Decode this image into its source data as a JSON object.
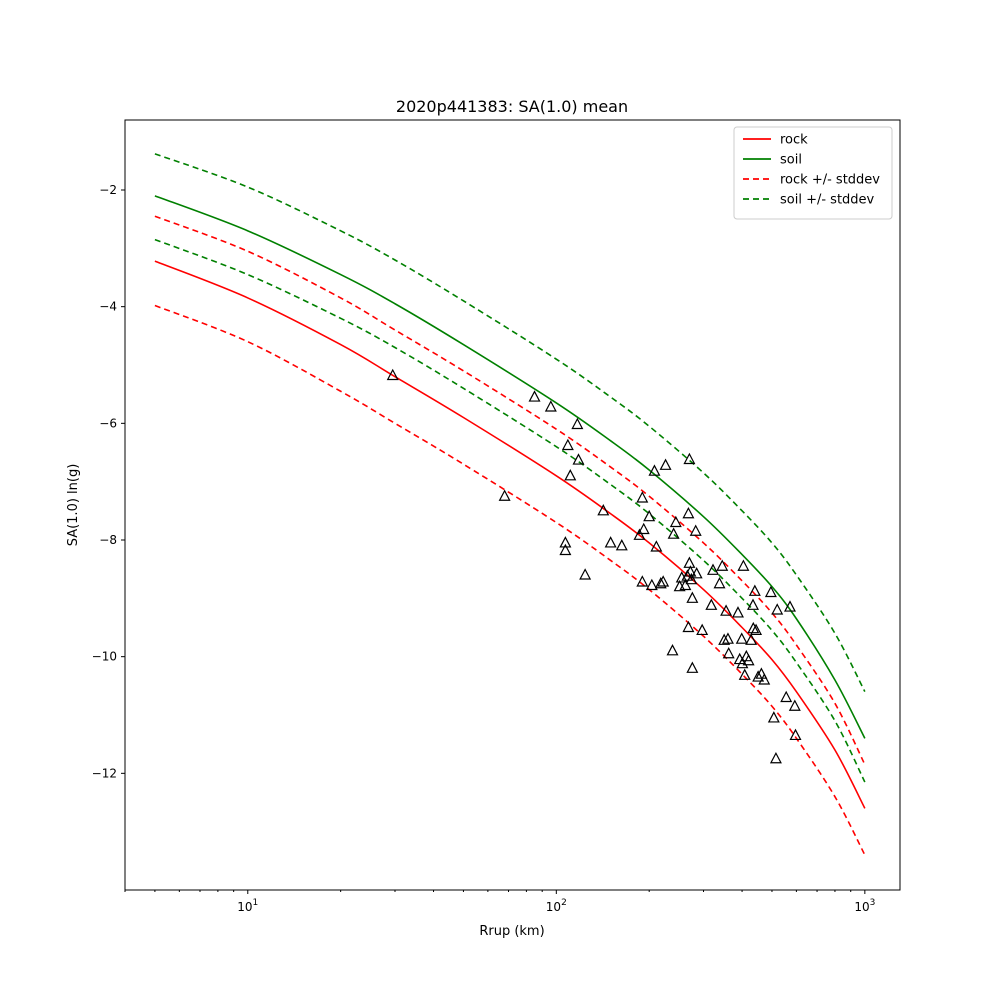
{
  "chart_data": {
    "type": "line",
    "title": "2020p441383: SA(1.0) mean",
    "xlabel": "Rrup (km)",
    "ylabel": "SA(1.0) ln(g)",
    "xscale": "log",
    "xlim": [
      4,
      1300
    ],
    "ylim": [
      -14.0,
      -0.8
    ],
    "x_ticks": [
      {
        "value": 10,
        "base": "10",
        "exp": "1"
      },
      {
        "value": 100,
        "base": "10",
        "exp": "2"
      },
      {
        "value": 1000,
        "base": "10",
        "exp": "3"
      }
    ],
    "y_ticks": [
      -12,
      -10,
      -8,
      -6,
      -4,
      -2
    ],
    "y_tick_labels": [
      "−12",
      "−10",
      "−8",
      "−6",
      "−4",
      "−2"
    ],
    "grid": false,
    "legend_position": "top-right",
    "x": [
      5,
      10,
      20,
      30,
      50,
      100,
      150,
      200,
      300,
      400,
      500,
      600,
      800,
      1000
    ],
    "series": [
      {
        "name": "rock",
        "color": "#ff0000",
        "style": "solid",
        "values": [
          -3.22,
          -3.85,
          -4.65,
          -5.2,
          -5.9,
          -6.9,
          -7.55,
          -8.05,
          -8.85,
          -9.5,
          -10.05,
          -10.6,
          -11.6,
          -12.6
        ]
      },
      {
        "name": "soil",
        "color": "#008000",
        "style": "solid",
        "values": [
          -2.1,
          -2.7,
          -3.45,
          -3.95,
          -4.65,
          -5.65,
          -6.3,
          -6.8,
          -7.6,
          -8.25,
          -8.8,
          -9.35,
          -10.4,
          -11.4
        ]
      },
      {
        "name": "rock +/- stddev",
        "color": "#ff0000",
        "style": "dashed",
        "values": [
          -2.45,
          -3.05,
          -3.85,
          -4.4,
          -5.1,
          -6.1,
          -6.75,
          -7.25,
          -8.05,
          -8.7,
          -9.25,
          -9.8,
          -10.8,
          -11.85
        ]
      },
      {
        "name": "rock +/- stddev",
        "color": "#ff0000",
        "style": "dashed",
        "show_in_legend": false,
        "values": [
          -3.98,
          -4.6,
          -5.45,
          -6.0,
          -6.7,
          -7.7,
          -8.35,
          -8.85,
          -9.65,
          -10.3,
          -10.85,
          -11.4,
          -12.4,
          -13.4
        ]
      },
      {
        "name": "soil +/- stddev",
        "color": "#008000",
        "style": "dashed",
        "values": [
          -1.38,
          -1.95,
          -2.7,
          -3.2,
          -3.9,
          -4.9,
          -5.55,
          -6.05,
          -6.85,
          -7.5,
          -8.05,
          -8.6,
          -9.6,
          -10.6
        ]
      },
      {
        "name": "soil +/- stddev",
        "color": "#008000",
        "style": "dashed",
        "show_in_legend": false,
        "values": [
          -2.85,
          -3.45,
          -4.2,
          -4.7,
          -5.4,
          -6.4,
          -7.05,
          -7.55,
          -8.35,
          -9.0,
          -9.55,
          -10.1,
          -11.1,
          -12.15
        ]
      }
    ],
    "observations": {
      "marker": "triangle",
      "points": [
        [
          29.5,
          -5.18
        ],
        [
          68,
          -7.25
        ],
        [
          85,
          -5.55
        ],
        [
          96,
          -5.72
        ],
        [
          107,
          -8.05
        ],
        [
          107,
          -8.18
        ],
        [
          109,
          -6.38
        ],
        [
          111,
          -6.9
        ],
        [
          117,
          -6.02
        ],
        [
          118,
          -6.63
        ],
        [
          124,
          -8.6
        ],
        [
          142,
          -7.5
        ],
        [
          150,
          -8.05
        ],
        [
          163,
          -8.1
        ],
        [
          186,
          -7.92
        ],
        [
          190,
          -7.28
        ],
        [
          192,
          -7.82
        ],
        [
          190,
          -8.72
        ],
        [
          200,
          -7.6
        ],
        [
          204,
          -8.78
        ],
        [
          208,
          -6.82
        ],
        [
          211,
          -8.12
        ],
        [
          218,
          -8.75
        ],
        [
          222,
          -8.72
        ],
        [
          226,
          -6.72
        ],
        [
          238,
          -9.9
        ],
        [
          240,
          -7.9
        ],
        [
          244,
          -7.7
        ],
        [
          251,
          -8.8
        ],
        [
          255,
          -8.65
        ],
        [
          262,
          -8.78
        ],
        [
          266,
          -8.62
        ],
        [
          268,
          -7.55
        ],
        [
          268,
          -9.5
        ],
        [
          270,
          -8.4
        ],
        [
          270,
          -6.62
        ],
        [
          272,
          -8.55
        ],
        [
          274,
          -8.68
        ],
        [
          276,
          -9.0
        ],
        [
          276,
          -10.2
        ],
        [
          283,
          -7.85
        ],
        [
          285,
          -8.58
        ],
        [
          297,
          -9.55
        ],
        [
          318,
          -9.12
        ],
        [
          322,
          -8.52
        ],
        [
          338,
          -8.75
        ],
        [
          345,
          -8.45
        ],
        [
          350,
          -9.72
        ],
        [
          355,
          -9.22
        ],
        [
          360,
          -9.7
        ],
        [
          362,
          -9.95
        ],
        [
          388,
          -9.25
        ],
        [
          393,
          -10.05
        ],
        [
          399,
          -9.7
        ],
        [
          401,
          -10.12
        ],
        [
          404,
          -8.45
        ],
        [
          408,
          -10.32
        ],
        [
          413,
          -10.0
        ],
        [
          420,
          -10.07
        ],
        [
          428,
          -9.72
        ],
        [
          434,
          -9.12
        ],
        [
          435,
          -9.52
        ],
        [
          440,
          -8.88
        ],
        [
          444,
          -9.55
        ],
        [
          451,
          -10.35
        ],
        [
          462,
          -10.3
        ],
        [
          472,
          -10.4
        ],
        [
          496,
          -8.9
        ],
        [
          507,
          -11.05
        ],
        [
          515,
          -11.75
        ],
        [
          520,
          -9.2
        ],
        [
          556,
          -10.7
        ],
        [
          572,
          -9.15
        ],
        [
          593,
          -10.85
        ],
        [
          596,
          -11.35
        ]
      ]
    }
  }
}
